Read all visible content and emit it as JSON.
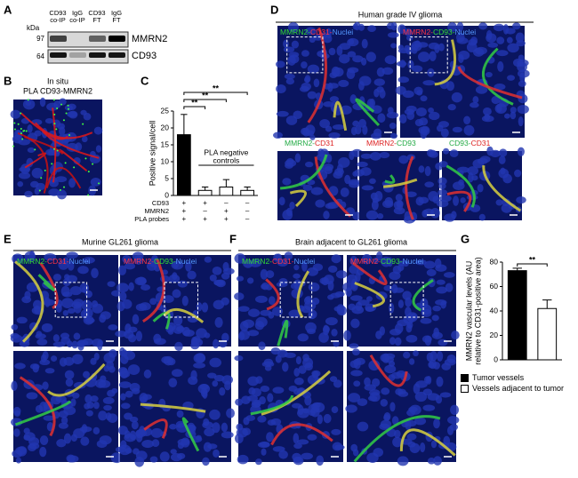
{
  "figure": {
    "panel_labels": [
      "A",
      "B",
      "C",
      "D",
      "E",
      "F",
      "G"
    ],
    "blot": {
      "unit": "kDa",
      "markers": [
        "97",
        "64"
      ],
      "lanes": [
        [
          "CD93",
          "co-IP"
        ],
        [
          "IgG",
          "co-IP"
        ],
        [
          "CD93",
          "FT"
        ],
        [
          "IgG",
          "FT"
        ]
      ],
      "bands": [
        "MMRN2",
        "CD93"
      ]
    },
    "b_title": [
      "In situ",
      "PLA CD93-MMRN2"
    ],
    "d_title": "Human grade IV glioma",
    "d_labels": [
      [
        {
          "text": "MMRN2-",
          "color": "#33dd33"
        },
        {
          "text": "CD31-",
          "color": "#ff3344"
        },
        {
          "text": "Nuclei",
          "color": "#5599ff"
        }
      ],
      [
        {
          "text": "MMRN2-",
          "color": "#ff3344"
        },
        {
          "text": "CD93-",
          "color": "#33dd33"
        },
        {
          "text": "Nuclei",
          "color": "#5599ff"
        }
      ],
      [
        {
          "text": "MMRN2-",
          "color": "#22aa44"
        },
        {
          "text": "CD31",
          "color": "#dd2222"
        }
      ],
      [
        {
          "text": "MMRN2-",
          "color": "#dd2222"
        },
        {
          "text": "CD93",
          "color": "#22aa44"
        }
      ],
      [
        {
          "text": "CD93-",
          "color": "#22aa44"
        },
        {
          "text": "CD31",
          "color": "#dd2222"
        }
      ]
    ],
    "e_title": "Murine GL261 glioma",
    "e_labels": [
      [
        {
          "text": "MMRN2-",
          "color": "#33dd33"
        },
        {
          "text": "CD31-",
          "color": "#ff3344"
        },
        {
          "text": "Nuclei",
          "color": "#5599ff"
        }
      ],
      [
        {
          "text": "MMRN2-",
          "color": "#ff3344"
        },
        {
          "text": "CD93-",
          "color": "#33dd33"
        },
        {
          "text": "Nuclei",
          "color": "#5599ff"
        }
      ]
    ],
    "f_title": "Brain adjacent to GL261 glioma",
    "f_labels": [
      [
        {
          "text": "MMRN2-",
          "color": "#33dd33"
        },
        {
          "text": "CD31-",
          "color": "#ff3344"
        },
        {
          "text": "Nuclei",
          "color": "#5599ff"
        }
      ],
      [
        {
          "text": "MMRN2-",
          "color": "#ff3344"
        },
        {
          "text": "CD93-",
          "color": "#33dd33"
        },
        {
          "text": "Nuclei",
          "color": "#5599ff"
        }
      ]
    ]
  },
  "chart_data": [
    {
      "type": "bar",
      "ylabel": [
        "Positive signal/cell"
      ],
      "values": [
        18,
        1.5,
        2.5,
        1.5
      ],
      "errors": [
        6,
        1,
        2.2,
        1
      ],
      "colors": [
        "#000000",
        "#ffffff",
        "#ffffff",
        "#ffffff"
      ],
      "ylim": [
        0,
        25
      ],
      "yticks": [
        0,
        5,
        10,
        15,
        20,
        25
      ],
      "significance": [
        "**",
        "**",
        "**"
      ],
      "annotation": [
        "PLA negative",
        "controls"
      ],
      "rows": [
        {
          "name": "CD93",
          "values": [
            "+",
            "+",
            "–",
            "–"
          ]
        },
        {
          "name": "MMRN2",
          "values": [
            "+",
            "–",
            "+",
            "–"
          ]
        },
        {
          "name": "PLA probes",
          "values": [
            "+",
            "+",
            "+",
            "–"
          ]
        }
      ]
    },
    {
      "type": "bar",
      "ylabel": [
        "MMRN2 vascular levels (AU",
        "relative to CD31-positive area)"
      ],
      "values": [
        73,
        42
      ],
      "errors": [
        2,
        7
      ],
      "colors": [
        "#000000",
        "#ffffff"
      ],
      "ylim": [
        0,
        80
      ],
      "yticks": [
        0,
        20,
        40,
        60,
        80
      ],
      "significance": [
        "**"
      ],
      "legend": [
        "Tumor vessels",
        "Vessels adjacent to tumor"
      ]
    }
  ]
}
